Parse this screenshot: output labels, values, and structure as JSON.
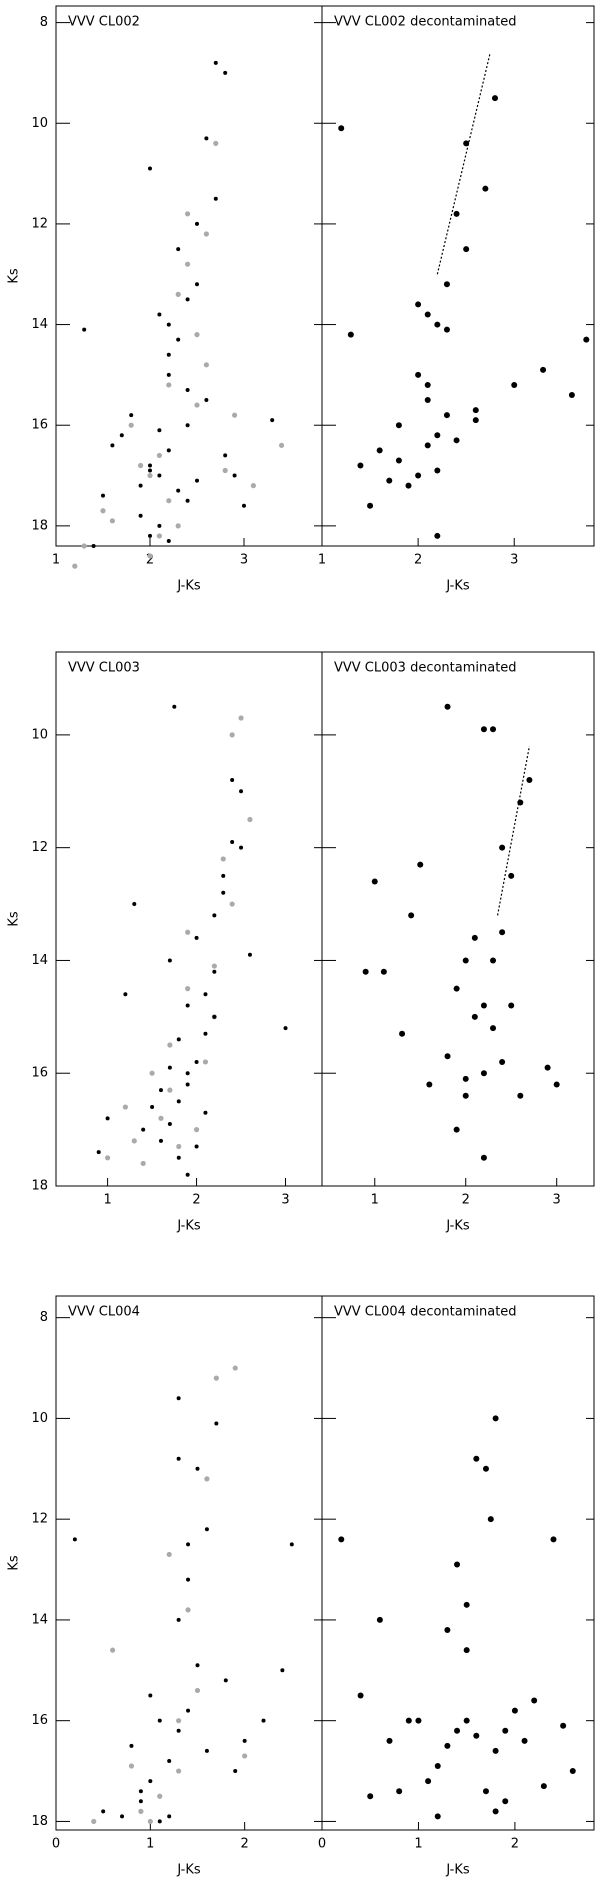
{
  "chart_data": [
    {
      "type": "scatter",
      "title": "VVV CL002",
      "xlabel": "J-Ks",
      "ylabel": "Ks",
      "xlim": [
        1,
        3.83
      ],
      "ylim": [
        7.67,
        18.4
      ],
      "y_inverted": true,
      "xticks": [
        1,
        2,
        3
      ],
      "yticks": [
        8,
        10,
        12,
        14,
        16,
        18
      ],
      "show_ytick_labels": true,
      "series": [
        {
          "color": "#aaaaaa",
          "marker_size": 2.6,
          "x": [
            2.2,
            1.9,
            2.5,
            2.1,
            2.6,
            1.6,
            2.3,
            2.8,
            2.0,
            2.4,
            1.3,
            3.1,
            2.2,
            2.7,
            1.8,
            2.4,
            2.0,
            2.5,
            3.4,
            1.2,
            2.3,
            2.6,
            2.1,
            2.9,
            1.5
          ],
          "values": [
            17.5,
            16.8,
            15.6,
            18.2,
            14.8,
            17.9,
            13.4,
            16.9,
            18.6,
            11.8,
            18.4,
            17.2,
            15.2,
            10.4,
            16.0,
            12.8,
            17.0,
            14.2,
            16.4,
            18.8,
            18.0,
            12.2,
            16.6,
            15.8,
            17.7
          ]
        },
        {
          "color": "#000000",
          "marker_size": 2.0,
          "x": [
            2.1,
            2.3,
            2.0,
            2.4,
            2.2,
            1.9,
            2.5,
            2.2,
            2.1,
            2.3,
            1.7,
            2.6,
            2.0,
            2.4,
            1.5,
            2.8,
            2.2,
            2.1,
            1.8,
            2.3,
            2.0,
            2.5,
            1.4,
            3.0,
            2.2,
            1.9,
            2.4,
            2.1,
            2.7,
            2.6,
            2.5,
            2.8,
            2.7,
            2.4,
            1.3,
            3.3,
            2.0,
            2.2,
            1.6,
            2.9
          ],
          "values": [
            17.0,
            17.3,
            16.8,
            17.5,
            16.5,
            17.8,
            17.1,
            14.0,
            13.8,
            14.3,
            16.2,
            15.5,
            18.2,
            16.0,
            17.4,
            16.6,
            15.0,
            18.0,
            15.8,
            12.5,
            16.9,
            13.2,
            18.4,
            17.6,
            14.6,
            17.2,
            15.3,
            16.1,
            11.5,
            10.3,
            12.0,
            9.0,
            8.8,
            13.5,
            14.1,
            15.9,
            10.9,
            18.3,
            16.4,
            17.0
          ]
        }
      ]
    },
    {
      "type": "scatter",
      "title": "VVV CL002 decontaminated",
      "xlabel": "J-Ks",
      "xlim": [
        1,
        3.83
      ],
      "ylim": [
        7.67,
        18.4
      ],
      "y_inverted": true,
      "xticks": [
        1,
        2,
        3
      ],
      "yticks": [
        8,
        10,
        12,
        14,
        16,
        18
      ],
      "show_ytick_labels": false,
      "series": [
        {
          "color": "#000000",
          "marker_size": 3.0,
          "x": [
            2.1,
            2.2,
            2.0,
            2.3,
            2.1,
            1.8,
            1.6,
            1.4,
            2.2,
            2.4,
            2.6,
            2.5,
            2.7,
            2.8,
            3.0,
            3.3,
            3.6,
            2.0,
            1.9,
            1.5,
            2.1,
            2.3,
            2.2,
            2.5,
            2.6,
            1.2,
            1.3,
            2.2,
            2.4,
            1.8,
            2.0,
            1.7,
            2.3,
            2.1,
            3.75
          ],
          "values": [
            13.8,
            14.0,
            13.6,
            14.1,
            15.2,
            16.0,
            16.5,
            16.8,
            16.9,
            16.3,
            15.7,
            12.5,
            11.3,
            9.5,
            15.2,
            14.9,
            15.4,
            17.0,
            17.2,
            17.6,
            15.5,
            15.8,
            16.2,
            10.4,
            15.9,
            10.1,
            14.2,
            18.2,
            11.8,
            16.7,
            15.0,
            17.1,
            13.2,
            16.4,
            14.3
          ]
        },
        {
          "mode": "line",
          "color": "#000000",
          "x": [
            2.2,
            2.75
          ],
          "values": [
            13.0,
            8.6
          ]
        }
      ]
    },
    {
      "type": "scatter",
      "title": "VVV CL003",
      "xlabel": "J-Ks",
      "ylabel": "Ks",
      "xlim": [
        0.42,
        3.41
      ],
      "ylim": [
        8.53,
        18
      ],
      "y_inverted": true,
      "xticks": [
        1,
        2,
        3
      ],
      "yticks": [
        10,
        12,
        14,
        16,
        18
      ],
      "show_ytick_labels": true,
      "series": [
        {
          "color": "#aaaaaa",
          "marker_size": 2.6,
          "x": [
            1.6,
            1.8,
            1.5,
            2.0,
            1.7,
            2.2,
            1.9,
            2.3,
            2.4,
            2.5,
            1.4,
            1.2,
            2.1,
            1.9,
            1.3,
            2.4,
            2.6,
            1.0,
            1.7,
            2.2
          ],
          "values": [
            16.8,
            17.3,
            16.0,
            17.0,
            15.5,
            14.1,
            13.5,
            12.2,
            10.0,
            9.7,
            17.6,
            16.6,
            15.8,
            14.5,
            17.2,
            13.0,
            11.5,
            17.5,
            16.3,
            15.0
          ]
        },
        {
          "color": "#000000",
          "marker_size": 2.0,
          "x": [
            1.8,
            1.7,
            1.9,
            1.6,
            2.0,
            1.5,
            1.8,
            2.1,
            1.7,
            1.9,
            2.2,
            2.0,
            1.4,
            2.3,
            1.9,
            2.1,
            2.2,
            2.4,
            2.5,
            2.3,
            2.4,
            1.2,
            1.0,
            2.6,
            1.8,
            1.6,
            2.0,
            2.2,
            3.0,
            1.3,
            1.7,
            2.1,
            1.9,
            2.5,
            0.9,
            1.75
          ],
          "values": [
            16.5,
            16.9,
            16.2,
            17.2,
            15.8,
            16.6,
            17.5,
            15.3,
            15.9,
            14.8,
            14.2,
            13.6,
            17.0,
            12.5,
            16.0,
            14.6,
            13.2,
            11.9,
            11.0,
            12.8,
            10.8,
            14.6,
            16.8,
            13.9,
            15.4,
            16.3,
            17.3,
            15.0,
            15.2,
            13.0,
            14.0,
            16.7,
            17.8,
            12.0,
            17.4,
            9.5
          ]
        }
      ]
    },
    {
      "type": "scatter",
      "title": "VVV CL003 decontaminated",
      "xlabel": "J-Ks",
      "xlim": [
        0.42,
        3.41
      ],
      "ylim": [
        8.53,
        18
      ],
      "y_inverted": true,
      "xticks": [
        1,
        2,
        3
      ],
      "yticks": [
        10,
        12,
        14,
        16,
        18
      ],
      "show_ytick_labels": false,
      "series": [
        {
          "color": "#000000",
          "marker_size": 3.0,
          "x": [
            2.3,
            2.4,
            2.2,
            2.5,
            2.3,
            2.1,
            1.9,
            2.0,
            1.8,
            2.2,
            1.9,
            2.0,
            2.6,
            2.4,
            2.7,
            2.3,
            1.8,
            2.2,
            2.5,
            1.5,
            1.4,
            1.1,
            1.0,
            0.9,
            1.3,
            1.6,
            2.4,
            2.6,
            2.0,
            2.2,
            2.9,
            3.0,
            2.1
          ],
          "values": [
            14.0,
            13.5,
            14.8,
            12.5,
            15.2,
            15.0,
            14.5,
            16.1,
            15.7,
            16.0,
            17.0,
            16.4,
            11.2,
            12.0,
            10.8,
            9.9,
            9.5,
            9.9,
            14.8,
            12.3,
            13.2,
            14.2,
            12.6,
            14.2,
            15.3,
            16.2,
            15.8,
            16.4,
            14.0,
            17.5,
            15.9,
            16.2,
            13.6
          ]
        },
        {
          "mode": "line",
          "color": "#000000",
          "x": [
            2.35,
            2.7
          ],
          "values": [
            13.2,
            10.2
          ]
        }
      ]
    },
    {
      "type": "scatter",
      "title": "VVV CL004",
      "xlabel": "J-Ks",
      "ylabel": "Ks",
      "xlim": [
        0,
        2.82
      ],
      "ylim": [
        7.57,
        18.17
      ],
      "y_inverted": true,
      "xticks": [
        0,
        1,
        2
      ],
      "yticks": [
        8,
        10,
        12,
        14,
        16,
        18
      ],
      "show_ytick_labels": true,
      "series": [
        {
          "color": "#aaaaaa",
          "marker_size": 2.6,
          "x": [
            1.1,
            0.8,
            1.3,
            1.0,
            1.5,
            0.6,
            1.2,
            1.7,
            1.9,
            0.4,
            1.4,
            1.6,
            2.0,
            0.9,
            1.3
          ],
          "values": [
            17.5,
            16.9,
            16.0,
            18.0,
            15.4,
            14.6,
            12.7,
            9.2,
            9.0,
            18.0,
            13.8,
            11.2,
            16.7,
            17.8,
            17.0
          ]
        },
        {
          "color": "#000000",
          "marker_size": 2.0,
          "x": [
            1.0,
            1.2,
            0.9,
            1.3,
            1.1,
            0.8,
            1.4,
            1.5,
            1.3,
            1.4,
            1.6,
            1.5,
            1.3,
            1.7,
            2.0,
            2.2,
            1.9,
            0.7,
            0.5,
            1.0,
            1.8,
            2.4,
            1.2,
            1.1,
            0.9,
            1.6,
            1.4,
            0.2,
            1.3,
            2.5
          ],
          "values": [
            17.2,
            16.8,
            17.6,
            16.2,
            18.0,
            16.5,
            15.8,
            14.9,
            14.0,
            13.2,
            12.2,
            11.0,
            10.8,
            10.1,
            16.4,
            16.0,
            17.0,
            17.9,
            17.8,
            15.5,
            15.2,
            15.0,
            17.9,
            16.0,
            17.4,
            16.6,
            12.5,
            12.4,
            9.6,
            12.5
          ]
        }
      ]
    },
    {
      "type": "scatter",
      "title": "VVV CL004 decontaminated",
      "xlabel": "J-Ks",
      "xlim": [
        0,
        2.82
      ],
      "ylim": [
        7.57,
        18.17
      ],
      "y_inverted": true,
      "xticks": [
        0,
        1,
        2
      ],
      "yticks": [
        8,
        10,
        12,
        14,
        16,
        18
      ],
      "show_ytick_labels": false,
      "series": [
        {
          "color": "#000000",
          "marker_size": 3.0,
          "x": [
            1.3,
            1.4,
            1.2,
            1.5,
            1.6,
            1.7,
            1.8,
            1.9,
            2.0,
            1.1,
            1.0,
            0.8,
            0.6,
            1.3,
            1.5,
            1.7,
            2.1,
            2.3,
            2.5,
            2.6,
            2.2,
            1.8,
            1.6,
            1.4,
            0.9,
            0.5,
            0.2,
            1.2,
            1.8,
            1.75,
            2.4,
            1.9,
            0.7,
            1.5,
            0.4
          ],
          "values": [
            16.5,
            16.2,
            16.9,
            16.0,
            16.3,
            17.4,
            16.6,
            16.2,
            15.8,
            17.2,
            16.0,
            17.4,
            14.0,
            14.2,
            13.7,
            11.0,
            16.4,
            17.3,
            16.1,
            17.0,
            15.6,
            10.0,
            10.8,
            12.9,
            16.0,
            17.5,
            12.4,
            17.9,
            17.8,
            12.0,
            12.4,
            17.6,
            16.4,
            14.6,
            15.5
          ]
        }
      ]
    }
  ]
}
